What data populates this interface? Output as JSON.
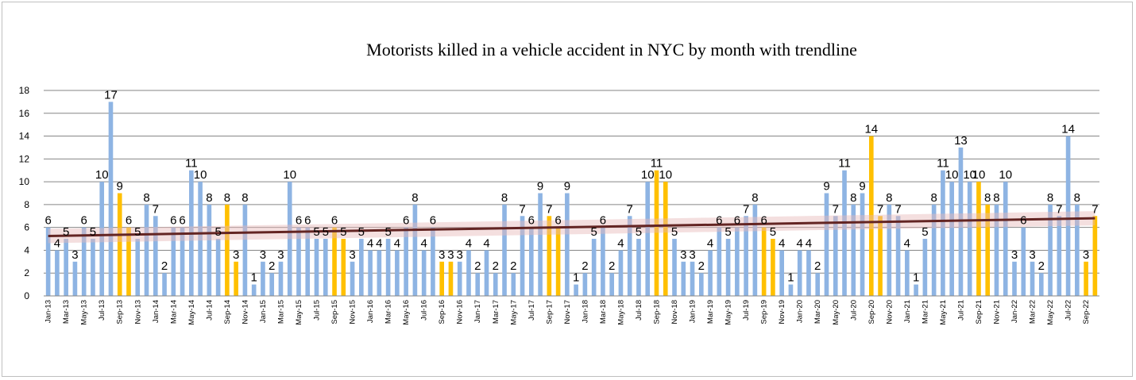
{
  "chart_data": {
    "type": "bar",
    "title": "Motorists killed in a vehicle accident in NYC by month with trendline",
    "xlabel": "",
    "ylabel": "",
    "ylim": [
      0,
      18
    ],
    "yticks": [
      "0",
      "2",
      "4",
      "6",
      "8",
      "10",
      "12",
      "14",
      "16",
      "18"
    ],
    "grid": true,
    "legend": "none",
    "colors": {
      "bar": "#8eb4e3",
      "highlight": "#ffc000",
      "trendline": "#632523",
      "band": "#e6b9b8"
    },
    "tick_labels": [
      "Jan-13",
      "Mar-13",
      "May-13",
      "Jul-13",
      "Sep-13",
      "Nov-13",
      "Jan-14",
      "Mar-14",
      "May-14",
      "Jul-14",
      "Sep-14",
      "Nov-14",
      "Jan-15",
      "Mar-15",
      "May-15",
      "Jul-15",
      "Sep-15",
      "Nov-15",
      "Jan-16",
      "Mar-16",
      "May-16",
      "Jul-16",
      "Sep-16",
      "Nov-16",
      "Jan-17",
      "Mar-17",
      "May-17",
      "Jul-17",
      "Sep-17",
      "Nov-17",
      "Jan-18",
      "Mar-18",
      "May-18",
      "Jul-18",
      "Sep-18",
      "Nov-18",
      "Jan-19",
      "Mar-19",
      "May-19",
      "Jul-19",
      "Sep-19",
      "Nov-19",
      "Jan-20",
      "Mar-20",
      "May-20",
      "Jul-20",
      "Sep-20",
      "Nov-20",
      "Jan-21",
      "Mar-21",
      "May-21",
      "Jul-21",
      "Sep-21",
      "Nov-21",
      "Jan-22",
      "Mar-22",
      "May-22",
      "Jul-22",
      "Sep-22"
    ],
    "values": [
      6,
      4,
      5,
      3,
      6,
      5,
      10,
      17,
      9,
      6,
      5,
      8,
      7,
      2,
      6,
      6,
      11,
      10,
      8,
      5,
      8,
      3,
      8,
      1,
      3,
      2,
      3,
      10,
      6,
      6,
      5,
      5,
      6,
      5,
      3,
      5,
      4,
      4,
      5,
      4,
      6,
      8,
      4,
      6,
      3,
      3,
      3,
      4,
      2,
      4,
      2,
      8,
      2,
      7,
      6,
      9,
      7,
      6,
      9,
      1,
      2,
      5,
      6,
      2,
      4,
      7,
      5,
      10,
      11,
      10,
      5,
      3,
      3,
      2,
      4,
      6,
      5,
      6,
      7,
      8,
      6,
      5,
      4,
      1,
      4,
      4,
      2,
      9,
      7,
      11,
      8,
      9,
      14,
      7,
      8,
      7,
      4,
      1,
      5,
      8,
      11,
      10,
      13,
      10,
      10,
      8,
      8,
      10,
      3,
      6,
      3,
      2,
      8,
      7,
      14,
      8,
      3,
      7
    ],
    "highlight_months": [
      "Sep",
      "Oct"
    ],
    "trendline": {
      "type": "linear",
      "start": 5.25,
      "end": 6.8
    }
  }
}
